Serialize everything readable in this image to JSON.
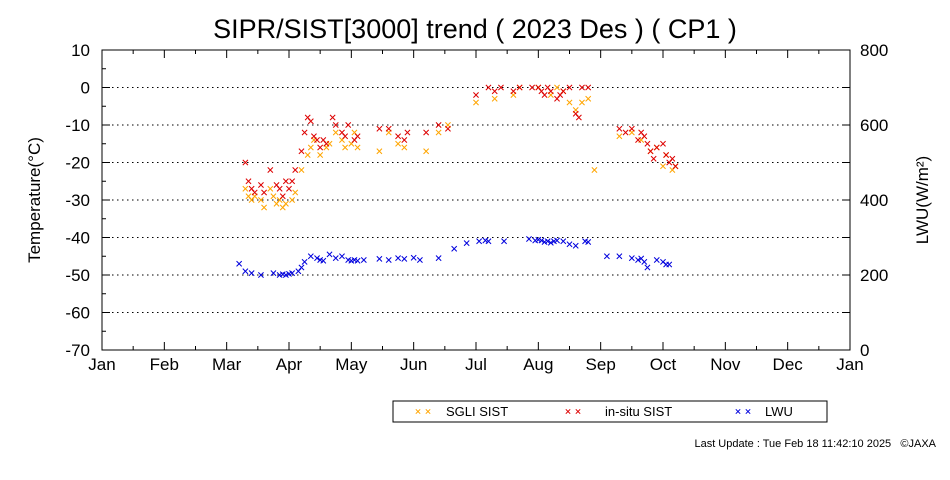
{
  "chart_data": {
    "type": "scatter",
    "title": "SIPR/SIST[3000] trend ( 2023 Des ) ( CP1 )",
    "ylabel": "Temperature(°C)",
    "y2label": "LWU(W/m²)",
    "xlabel": "",
    "x_range": [
      0,
      12
    ],
    "x_ticks": [
      "Jan",
      "Feb",
      "Mar",
      "Apr",
      "May",
      "Jun",
      "Jul",
      "Aug",
      "Sep",
      "Oct",
      "Nov",
      "Dec",
      "Jan"
    ],
    "ylim": [
      -70,
      10
    ],
    "y_ticks": [
      10,
      0,
      -10,
      -20,
      -30,
      -40,
      -50,
      -60,
      -70
    ],
    "y2lim": [
      0,
      800
    ],
    "y2_ticks": [
      800,
      600,
      400,
      200,
      0
    ],
    "grid": "horizontal dotted at 10°C intervals",
    "legend_position": "bottom",
    "marker": "×",
    "series": [
      {
        "name": "SGLI SIST",
        "color": "#ffa500",
        "axis": "left",
        "x": [
          2.3,
          2.35,
          2.4,
          2.45,
          2.55,
          2.6,
          2.7,
          2.75,
          2.8,
          2.85,
          2.9,
          2.95,
          3.05,
          3.1,
          3.2,
          3.3,
          3.35,
          3.4,
          3.5,
          3.6,
          3.65,
          3.75,
          3.85,
          3.9,
          4.0,
          4.05,
          4.1,
          4.45,
          4.6,
          4.75,
          4.85,
          5.2,
          5.4,
          5.55,
          6.0,
          6.3,
          6.6,
          6.7,
          7.0,
          7.2,
          7.3,
          7.4,
          7.5,
          7.6,
          7.7,
          7.8,
          7.9,
          8.3,
          8.5,
          8.65,
          8.8,
          8.9,
          9.0,
          9.05,
          9.15,
          9.2
        ],
        "y": [
          -27,
          -29,
          -30,
          -29,
          -30,
          -32,
          -27,
          -29,
          -31,
          -30,
          -32,
          -31,
          -30,
          -28,
          -22,
          -18,
          -16,
          -14,
          -18,
          -16,
          -15,
          -12,
          -14,
          -16,
          -15,
          -12,
          -16,
          -17,
          -12,
          -15,
          -16,
          -17,
          -12,
          -10,
          -4,
          -3,
          -2,
          0,
          0,
          -2,
          0,
          -1,
          -4,
          -6,
          -4,
          -3,
          -22,
          -13,
          -12,
          -14,
          -17,
          -16,
          -21,
          -18,
          -22,
          -21
        ]
      },
      {
        "name": "in-situ SIST",
        "color": "#dd0000",
        "axis": "left",
        "x": [
          2.3,
          2.35,
          2.4,
          2.45,
          2.55,
          2.6,
          2.7,
          2.8,
          2.85,
          2.9,
          2.95,
          3.0,
          3.05,
          3.1,
          3.2,
          3.25,
          3.3,
          3.35,
          3.4,
          3.45,
          3.5,
          3.55,
          3.6,
          3.7,
          3.75,
          3.85,
          3.9,
          3.95,
          4.05,
          4.1,
          4.45,
          4.6,
          4.75,
          4.85,
          4.9,
          5.2,
          5.4,
          5.55,
          6.0,
          6.2,
          6.3,
          6.4,
          6.6,
          6.7,
          6.9,
          7.0,
          7.05,
          7.1,
          7.15,
          7.2,
          7.3,
          7.35,
          7.4,
          7.5,
          7.6,
          7.65,
          7.7,
          7.8,
          8.3,
          8.4,
          8.5,
          8.6,
          8.65,
          8.7,
          8.75,
          8.8,
          8.85,
          8.9,
          9.0,
          9.05,
          9.1,
          9.15,
          9.2
        ],
        "y": [
          -20,
          -25,
          -27,
          -28,
          -26,
          -28,
          -22,
          -26,
          -27,
          -29,
          -25,
          -27,
          -25,
          -22,
          -17,
          -12,
          -8,
          -9,
          -13,
          -14,
          -16,
          -14,
          -15,
          -8,
          -10,
          -12,
          -13,
          -10,
          -14,
          -13,
          -11,
          -11,
          -13,
          -14,
          -12,
          -12,
          -10,
          -11,
          -2,
          0,
          -1,
          0,
          -1,
          0,
          0,
          0,
          -1,
          -2,
          0,
          -1,
          -3,
          -2,
          -1,
          0,
          -7,
          -8,
          0,
          0,
          -11,
          -12,
          -11,
          -14,
          -12,
          -13,
          -15,
          -17,
          -19,
          -16,
          -15,
          -18,
          -20,
          -19,
          -21
        ]
      },
      {
        "name": "LWU",
        "color": "#0000dd",
        "axis": "right",
        "x": [
          2.2,
          2.3,
          2.4,
          2.55,
          2.75,
          2.85,
          2.9,
          2.95,
          3.0,
          3.05,
          3.15,
          3.2,
          3.25,
          3.35,
          3.45,
          3.5,
          3.55,
          3.65,
          3.75,
          3.85,
          3.95,
          4.0,
          4.05,
          4.1,
          4.2,
          4.45,
          4.6,
          4.75,
          4.85,
          5.0,
          5.1,
          5.4,
          5.65,
          5.85,
          6.05,
          6.15,
          6.2,
          6.45,
          6.85,
          6.95,
          7.0,
          7.05,
          7.1,
          7.15,
          7.2,
          7.25,
          7.3,
          7.4,
          7.5,
          7.6,
          7.75,
          7.8,
          8.1,
          8.3,
          8.5,
          8.6,
          8.65,
          8.7,
          8.75,
          8.9,
          9.0,
          9.05,
          9.1
        ],
        "y": [
          230,
          210,
          205,
          200,
          205,
          200,
          202,
          200,
          203,
          205,
          210,
          220,
          235,
          250,
          245,
          240,
          238,
          255,
          245,
          250,
          240,
          238,
          240,
          238,
          240,
          243,
          240,
          245,
          243,
          246,
          240,
          245,
          270,
          285,
          290,
          292,
          290,
          290,
          296,
          292,
          294,
          292,
          288,
          290,
          286,
          290,
          292,
          290,
          282,
          278,
          290,
          288,
          250,
          250,
          245,
          240,
          244,
          235,
          220,
          240,
          235,
          228,
          228
        ]
      }
    ]
  },
  "footer": {
    "last_update": "Last Update : Tue Feb 18 11:42:10 2025",
    "copyright": "©JAXA"
  }
}
